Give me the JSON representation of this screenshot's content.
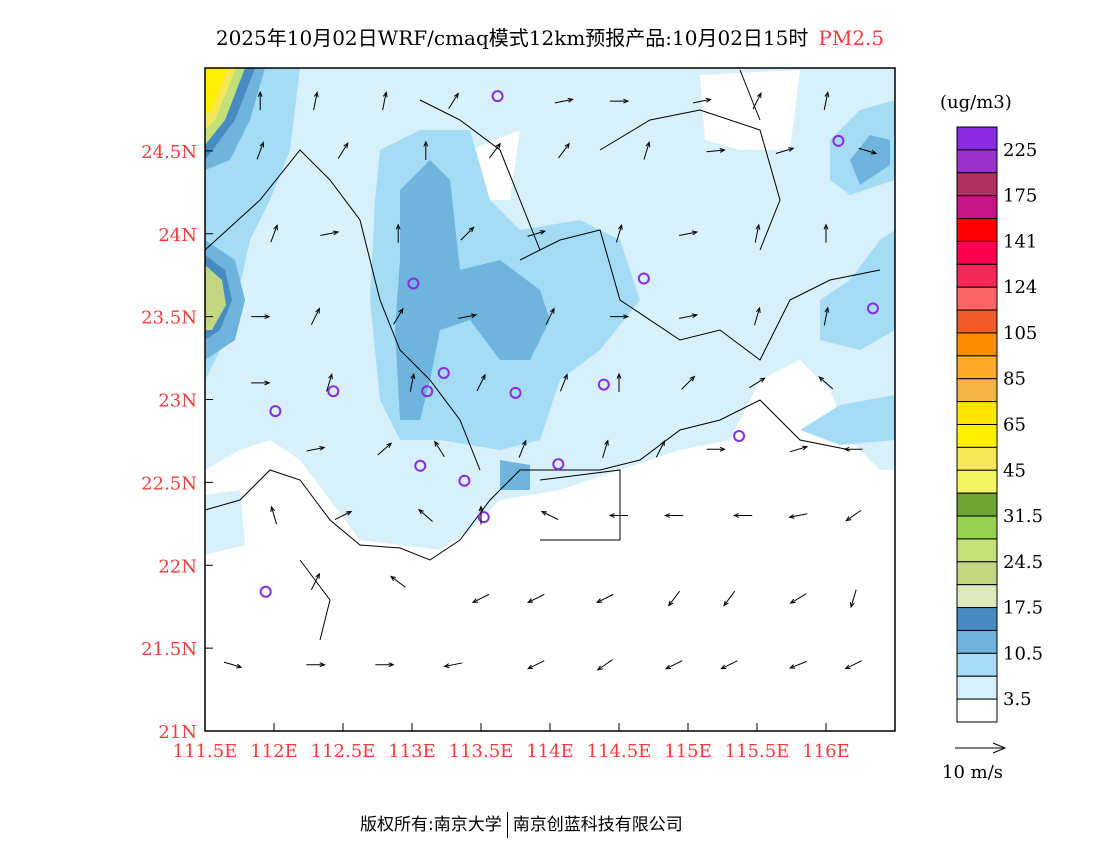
{
  "title": {
    "main": "2025年10月02日WRF/cmaq模式12km预报产品:10月02日15时",
    "species": "PM2.5"
  },
  "footer": {
    "left": "版权所有:南京大学",
    "right": "南京创蓝科技有限公司"
  },
  "map": {
    "lon_range": [
      111.5,
      116.5
    ],
    "lat_range": [
      21,
      25
    ],
    "lon_ticks": [
      {
        "v": 111.5,
        "label": "111.5E"
      },
      {
        "v": 112,
        "label": "112E"
      },
      {
        "v": 112.5,
        "label": "112.5E"
      },
      {
        "v": 113,
        "label": "113E"
      },
      {
        "v": 113.5,
        "label": "113.5E"
      },
      {
        "v": 114,
        "label": "114E"
      },
      {
        "v": 114.5,
        "label": "114.5E"
      },
      {
        "v": 115,
        "label": "115E"
      },
      {
        "v": 115.5,
        "label": "115.5E"
      },
      {
        "v": 116,
        "label": "116E"
      }
    ],
    "lat_ticks": [
      {
        "v": 21,
        "label": "21N"
      },
      {
        "v": 21.5,
        "label": "21.5N"
      },
      {
        "v": 22,
        "label": "22N"
      },
      {
        "v": 22.5,
        "label": "22.5N"
      },
      {
        "v": 23,
        "label": "23N"
      },
      {
        "v": 23.5,
        "label": "23.5N"
      },
      {
        "v": 24,
        "label": "24N"
      },
      {
        "v": 24.5,
        "label": "24.5N"
      }
    ],
    "stations": [
      [
        113.62,
        24.83
      ],
      [
        116.09,
        24.56
      ],
      [
        113.01,
        23.7
      ],
      [
        114.68,
        23.73
      ],
      [
        116.34,
        23.55
      ],
      [
        113.23,
        23.16
      ],
      [
        112.43,
        23.05
      ],
      [
        113.11,
        23.05
      ],
      [
        113.75,
        23.04
      ],
      [
        114.39,
        23.09
      ],
      [
        112.01,
        22.93
      ],
      [
        115.37,
        22.78
      ],
      [
        113.06,
        22.6
      ],
      [
        114.06,
        22.61
      ],
      [
        113.38,
        22.51
      ],
      [
        113.52,
        22.29
      ],
      [
        111.94,
        21.84
      ]
    ],
    "station_color": "#8a2be2",
    "wind": [
      [
        111.9,
        24.8,
        0,
        1
      ],
      [
        112.3,
        24.8,
        0.2,
        1
      ],
      [
        112.8,
        24.8,
        0.2,
        1
      ],
      [
        113.3,
        24.8,
        0.5,
        0.8
      ],
      [
        114.1,
        24.8,
        1,
        0.2
      ],
      [
        114.5,
        24.8,
        1,
        0
      ],
      [
        115.1,
        24.8,
        1,
        0.2
      ],
      [
        115.5,
        24.8,
        0.5,
        1
      ],
      [
        116.0,
        24.8,
        0.2,
        1
      ],
      [
        111.9,
        24.5,
        0.3,
        0.8
      ],
      [
        112.5,
        24.5,
        0.5,
        0.8
      ],
      [
        113.1,
        24.5,
        0,
        1
      ],
      [
        113.6,
        24.5,
        0.6,
        0.8
      ],
      [
        114.1,
        24.5,
        0.6,
        0.8
      ],
      [
        114.7,
        24.5,
        0.3,
        1
      ],
      [
        115.2,
        24.5,
        1,
        0.1
      ],
      [
        115.7,
        24.5,
        1,
        0.3
      ],
      [
        116.3,
        24.5,
        1,
        -0.3
      ],
      [
        112.0,
        24.0,
        0.3,
        0.8
      ],
      [
        112.4,
        24.0,
        1,
        0.2
      ],
      [
        112.9,
        24.0,
        0,
        1
      ],
      [
        113.4,
        24.0,
        0.7,
        0.7
      ],
      [
        113.9,
        24.0,
        1,
        0.3
      ],
      [
        114.5,
        24.0,
        0.3,
        1
      ],
      [
        115.0,
        24.0,
        1,
        0.2
      ],
      [
        115.5,
        24.0,
        0.2,
        1
      ],
      [
        116.0,
        24.0,
        0,
        1
      ],
      [
        111.9,
        23.5,
        1,
        0
      ],
      [
        112.3,
        23.5,
        0.5,
        1
      ],
      [
        112.9,
        23.5,
        0.6,
        1
      ],
      [
        113.4,
        23.5,
        1,
        0.2
      ],
      [
        114.0,
        23.5,
        0.5,
        1
      ],
      [
        114.5,
        23.5,
        1,
        0
      ],
      [
        115.0,
        23.5,
        1,
        0.2
      ],
      [
        115.5,
        23.5,
        0.3,
        1
      ],
      [
        116.0,
        23.5,
        0.2,
        1
      ],
      [
        111.9,
        23.1,
        1,
        0
      ],
      [
        112.4,
        23.1,
        0.3,
        1
      ],
      [
        113.0,
        23.1,
        0.2,
        1
      ],
      [
        113.5,
        23.1,
        0.5,
        1
      ],
      [
        114.1,
        23.1,
        0.4,
        1
      ],
      [
        114.5,
        23.1,
        0,
        1
      ],
      [
        115.0,
        23.1,
        0.7,
        0.7
      ],
      [
        115.5,
        23.1,
        0.8,
        0.5
      ],
      [
        116.0,
        23.1,
        -0.8,
        0.7
      ],
      [
        112.3,
        22.7,
        1,
        0.2
      ],
      [
        112.8,
        22.7,
        0.8,
        0.7
      ],
      [
        113.2,
        22.7,
        -0.5,
        0.8
      ],
      [
        113.8,
        22.7,
        0.4,
        1
      ],
      [
        114.4,
        22.7,
        0.3,
        1
      ],
      [
        114.8,
        22.7,
        0.5,
        1
      ],
      [
        115.2,
        22.7,
        1,
        0
      ],
      [
        115.8,
        22.7,
        1,
        0.3
      ],
      [
        116.2,
        22.7,
        -1,
        0
      ],
      [
        112.0,
        22.3,
        -0.3,
        1
      ],
      [
        112.5,
        22.3,
        1,
        0.5
      ],
      [
        113.1,
        22.3,
        -0.8,
        0.7
      ],
      [
        113.5,
        22.3,
        0,
        1
      ],
      [
        114.0,
        22.3,
        -1,
        0.5
      ],
      [
        114.5,
        22.3,
        -1,
        0
      ],
      [
        114.9,
        22.3,
        -1,
        0
      ],
      [
        115.4,
        22.3,
        -1,
        0
      ],
      [
        115.8,
        22.3,
        -1,
        -0.2
      ],
      [
        116.2,
        22.3,
        -1,
        -0.7
      ],
      [
        112.3,
        21.9,
        0.5,
        1
      ],
      [
        112.9,
        21.9,
        -0.8,
        0.6
      ],
      [
        113.5,
        21.8,
        -1,
        -0.5
      ],
      [
        113.9,
        21.8,
        -1,
        -0.5
      ],
      [
        114.4,
        21.8,
        -1,
        -0.5
      ],
      [
        114.9,
        21.8,
        -0.6,
        -0.8
      ],
      [
        115.3,
        21.8,
        -0.6,
        -0.8
      ],
      [
        115.8,
        21.8,
        -1,
        -0.6
      ],
      [
        116.2,
        21.8,
        -0.3,
        -1
      ],
      [
        111.7,
        21.4,
        1,
        -0.3
      ],
      [
        112.3,
        21.4,
        1,
        0
      ],
      [
        112.8,
        21.4,
        1,
        0
      ],
      [
        113.3,
        21.4,
        -1,
        -0.2
      ],
      [
        113.9,
        21.4,
        -1,
        -0.5
      ],
      [
        114.4,
        21.4,
        -1,
        -0.7
      ],
      [
        114.9,
        21.4,
        -1,
        -0.5
      ],
      [
        115.3,
        21.4,
        -1,
        -0.5
      ],
      [
        115.8,
        21.4,
        -1,
        -0.4
      ],
      [
        116.2,
        21.4,
        -1,
        -0.5
      ]
    ]
  },
  "colorbar": {
    "unit": "(ug/m3)",
    "colors": [
      "#8a2be2",
      "#9932cc",
      "#b03060",
      "#c71585",
      "#ff0000",
      "#ff0050",
      "#f5285a",
      "#ff6464",
      "#f05a28",
      "#ff8c00",
      "#ffaa28",
      "#f5b446",
      "#ffe600",
      "#fff000",
      "#f5e65a",
      "#f5f564",
      "#6ea532",
      "#96d250",
      "#c3e178",
      "#c3d782",
      "#dceabe",
      "#468cc3",
      "#6eb4dc",
      "#a5dcf5",
      "#d7f0fa",
      "#ffffff"
    ],
    "labels": [
      "225",
      "175",
      "141",
      "124",
      "105",
      "85",
      "65",
      "45",
      "31.5",
      "24.5",
      "17.5",
      "10.5",
      "3.5"
    ]
  },
  "wind_scale": {
    "label": "10 m/s"
  }
}
